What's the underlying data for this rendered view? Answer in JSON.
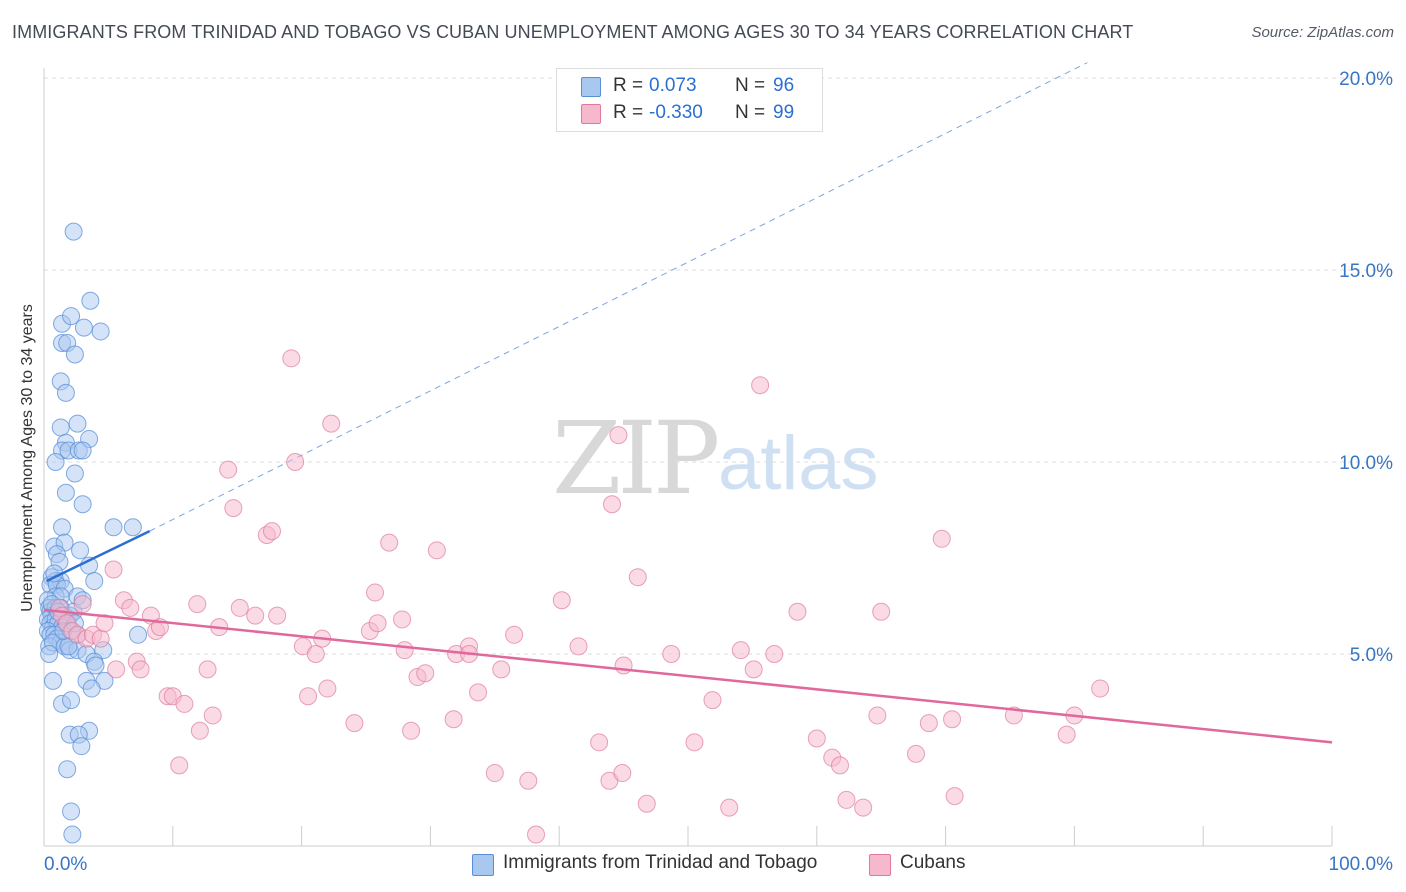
{
  "header": {
    "title": "IMMIGRANTS FROM TRINIDAD AND TOBAGO VS CUBAN UNEMPLOYMENT AMONG AGES 30 TO 34 YEARS CORRELATION CHART",
    "source": "Source: ZipAtlas.com"
  },
  "watermark": {
    "zip": "ZIP",
    "atlas": "atlas"
  },
  "legend": {
    "rows": [
      {
        "r_label": "R =",
        "r_value": " 0.073",
        "n_label": "N =",
        "n_value": "96",
        "color": "#a9c8f0",
        "border": "#5a8fd8"
      },
      {
        "r_label": "R =",
        "r_value": "-0.330",
        "n_label": "N =",
        "n_value": "99",
        "color": "#f6b8cc",
        "border": "#e07a9c"
      }
    ]
  },
  "bottom_legend": [
    {
      "label": "Immigrants from Trinidad and Tobago",
      "color": "#a9c8f0",
      "border": "#5a8fd8"
    },
    {
      "label": "Cubans",
      "color": "#f6b8cc",
      "border": "#e07a9c"
    }
  ],
  "chart_data": {
    "type": "scatter",
    "title": "IMMIGRANTS FROM TRINIDAD AND TOBAGO VS CUBAN UNEMPLOYMENT AMONG AGES 30 TO 34 YEARS CORRELATION CHART",
    "xlabel": "",
    "ylabel": "Unemployment Among Ages 30 to 34 years",
    "xlim": [
      0,
      100
    ],
    "ylim": [
      0,
      20
    ],
    "x_tick_labels": [
      "0.0%",
      "100.0%"
    ],
    "y_ticks": [
      5,
      10,
      15,
      20
    ],
    "y_tick_labels": [
      "5.0%",
      "10.0%",
      "15.0%",
      "20.0%"
    ],
    "grid": "horizontal dashed",
    "legend_position": "top-center",
    "series": [
      {
        "name": "Immigrants from Trinidad and Tobago",
        "color": "#5a8fd8",
        "fill": "#a9c8f0",
        "trend": {
          "x": [
            0.2,
            8.2
          ],
          "y": [
            6.9,
            8.2
          ],
          "dashed_extension": {
            "x": [
              8.2,
              81.0
            ],
            "y": [
              8.2,
              20.4
            ]
          }
        },
        "points": [
          [
            2.3,
            16.0
          ],
          [
            3.6,
            14.2
          ],
          [
            1.4,
            13.6
          ],
          [
            2.1,
            13.8
          ],
          [
            3.1,
            13.5
          ],
          [
            4.4,
            13.4
          ],
          [
            1.4,
            13.1
          ],
          [
            1.8,
            13.1
          ],
          [
            2.4,
            12.8
          ],
          [
            1.3,
            12.1
          ],
          [
            1.7,
            11.8
          ],
          [
            2.6,
            11.0
          ],
          [
            1.3,
            10.9
          ],
          [
            1.7,
            10.5
          ],
          [
            3.5,
            10.6
          ],
          [
            1.4,
            10.3
          ],
          [
            1.9,
            10.3
          ],
          [
            2.7,
            10.3
          ],
          [
            3.0,
            10.3
          ],
          [
            0.9,
            10.0
          ],
          [
            2.4,
            9.7
          ],
          [
            1.7,
            9.2
          ],
          [
            3.0,
            8.9
          ],
          [
            1.4,
            8.3
          ],
          [
            5.4,
            8.3
          ],
          [
            6.9,
            8.3
          ],
          [
            0.8,
            7.8
          ],
          [
            1.6,
            7.9
          ],
          [
            1.0,
            7.6
          ],
          [
            2.8,
            7.7
          ],
          [
            1.2,
            7.4
          ],
          [
            3.5,
            7.3
          ],
          [
            0.6,
            7.0
          ],
          [
            0.9,
            6.9
          ],
          [
            1.3,
            6.9
          ],
          [
            0.5,
            6.8
          ],
          [
            1.0,
            6.8
          ],
          [
            1.6,
            6.7
          ],
          [
            3.9,
            6.9
          ],
          [
            0.9,
            6.5
          ],
          [
            1.3,
            6.5
          ],
          [
            2.6,
            6.5
          ],
          [
            0.3,
            6.4
          ],
          [
            0.4,
            6.2
          ],
          [
            0.5,
            6.1
          ],
          [
            0.6,
            6.0
          ],
          [
            0.9,
            6.2
          ],
          [
            1.3,
            6.2
          ],
          [
            1.6,
            6.0
          ],
          [
            2.0,
            6.0
          ],
          [
            2.3,
            6.1
          ],
          [
            0.3,
            5.9
          ],
          [
            0.5,
            5.8
          ],
          [
            0.7,
            5.7
          ],
          [
            0.9,
            5.9
          ],
          [
            1.1,
            5.8
          ],
          [
            1.4,
            5.7
          ],
          [
            1.7,
            5.8
          ],
          [
            0.3,
            5.6
          ],
          [
            0.5,
            5.5
          ],
          [
            0.8,
            5.5
          ],
          [
            1.0,
            5.4
          ],
          [
            1.3,
            5.3
          ],
          [
            2.1,
            5.6
          ],
          [
            2.6,
            5.5
          ],
          [
            0.4,
            5.2
          ],
          [
            0.7,
            5.3
          ],
          [
            1.6,
            5.2
          ],
          [
            2.0,
            5.1
          ],
          [
            2.6,
            5.1
          ],
          [
            3.3,
            5.0
          ],
          [
            4.6,
            5.1
          ],
          [
            7.3,
            5.5
          ],
          [
            1.9,
            5.2
          ],
          [
            3.9,
            4.8
          ],
          [
            4.0,
            4.7
          ],
          [
            0.7,
            4.3
          ],
          [
            3.3,
            4.3
          ],
          [
            4.7,
            4.3
          ],
          [
            3.7,
            4.1
          ],
          [
            1.4,
            3.7
          ],
          [
            2.1,
            3.8
          ],
          [
            3.5,
            3.0
          ],
          [
            2.0,
            2.9
          ],
          [
            2.7,
            2.9
          ],
          [
            2.9,
            2.6
          ],
          [
            1.8,
            2.0
          ],
          [
            2.1,
            0.9
          ],
          [
            2.2,
            0.3
          ],
          [
            0.6,
            6.3
          ],
          [
            1.1,
            6.1
          ],
          [
            1.5,
            5.6
          ],
          [
            0.4,
            5.0
          ],
          [
            2.4,
            5.8
          ],
          [
            3.0,
            6.4
          ],
          [
            0.8,
            7.1
          ]
        ]
      },
      {
        "name": "Cubans",
        "color": "#e07a9c",
        "fill": "#f6b8cc",
        "trend": {
          "x": [
            0.0,
            100.0
          ],
          "y": [
            6.15,
            2.7
          ]
        },
        "points": [
          [
            1.2,
            6.2
          ],
          [
            1.4,
            6.0
          ],
          [
            1.8,
            5.8
          ],
          [
            2.2,
            5.6
          ],
          [
            2.6,
            5.5
          ],
          [
            3.0,
            6.3
          ],
          [
            3.3,
            5.4
          ],
          [
            3.8,
            5.5
          ],
          [
            4.4,
            5.4
          ],
          [
            4.7,
            5.8
          ],
          [
            5.4,
            7.2
          ],
          [
            5.6,
            4.6
          ],
          [
            6.2,
            6.4
          ],
          [
            6.7,
            6.2
          ],
          [
            7.2,
            4.8
          ],
          [
            7.5,
            4.6
          ],
          [
            8.3,
            6.0
          ],
          [
            8.7,
            5.6
          ],
          [
            9.0,
            5.7
          ],
          [
            9.6,
            3.9
          ],
          [
            10.0,
            3.9
          ],
          [
            10.5,
            2.1
          ],
          [
            10.9,
            3.7
          ],
          [
            11.9,
            6.3
          ],
          [
            12.1,
            3.0
          ],
          [
            12.7,
            4.6
          ],
          [
            13.1,
            3.4
          ],
          [
            13.6,
            5.7
          ],
          [
            14.3,
            9.8
          ],
          [
            14.7,
            8.8
          ],
          [
            15.2,
            6.2
          ],
          [
            16.4,
            6.0
          ],
          [
            17.3,
            8.1
          ],
          [
            17.7,
            8.2
          ],
          [
            18.1,
            6.0
          ],
          [
            19.2,
            12.7
          ],
          [
            19.5,
            10.0
          ],
          [
            20.1,
            5.2
          ],
          [
            20.5,
            3.9
          ],
          [
            21.1,
            5.0
          ],
          [
            21.6,
            5.4
          ],
          [
            22.0,
            4.1
          ],
          [
            22.3,
            11.0
          ],
          [
            24.1,
            3.2
          ],
          [
            25.3,
            5.6
          ],
          [
            25.7,
            6.6
          ],
          [
            25.9,
            5.8
          ],
          [
            26.8,
            7.9
          ],
          [
            27.8,
            5.9
          ],
          [
            28.0,
            5.1
          ],
          [
            28.5,
            3.0
          ],
          [
            29.0,
            4.4
          ],
          [
            29.6,
            4.5
          ],
          [
            30.5,
            7.7
          ],
          [
            31.8,
            3.3
          ],
          [
            32.0,
            5.0
          ],
          [
            33.0,
            5.2
          ],
          [
            33.7,
            4.0
          ],
          [
            35.0,
            1.9
          ],
          [
            35.5,
            4.6
          ],
          [
            36.5,
            5.5
          ],
          [
            37.6,
            1.7
          ],
          [
            38.2,
            0.3
          ],
          [
            40.2,
            6.4
          ],
          [
            41.5,
            5.2
          ],
          [
            43.1,
            2.7
          ],
          [
            43.9,
            1.7
          ],
          [
            44.1,
            8.9
          ],
          [
            44.6,
            10.7
          ],
          [
            44.9,
            1.9
          ],
          [
            45.0,
            4.7
          ],
          [
            46.1,
            7.0
          ],
          [
            46.8,
            1.1
          ],
          [
            48.7,
            5.0
          ],
          [
            50.5,
            2.7
          ],
          [
            51.9,
            3.8
          ],
          [
            53.2,
            1.0
          ],
          [
            54.1,
            5.1
          ],
          [
            55.1,
            4.6
          ],
          [
            55.6,
            12.0
          ],
          [
            56.7,
            5.0
          ],
          [
            58.5,
            6.1
          ],
          [
            60.0,
            2.8
          ],
          [
            61.2,
            2.3
          ],
          [
            61.8,
            2.1
          ],
          [
            62.3,
            1.2
          ],
          [
            63.6,
            1.0
          ],
          [
            64.7,
            3.4
          ],
          [
            65.0,
            6.1
          ],
          [
            67.7,
            2.4
          ],
          [
            68.7,
            3.2
          ],
          [
            69.7,
            8.0
          ],
          [
            70.5,
            3.3
          ],
          [
            70.7,
            1.3
          ],
          [
            75.3,
            3.4
          ],
          [
            79.4,
            2.9
          ],
          [
            80.0,
            3.4
          ],
          [
            82.0,
            4.1
          ],
          [
            33.0,
            5.0
          ]
        ]
      }
    ]
  }
}
